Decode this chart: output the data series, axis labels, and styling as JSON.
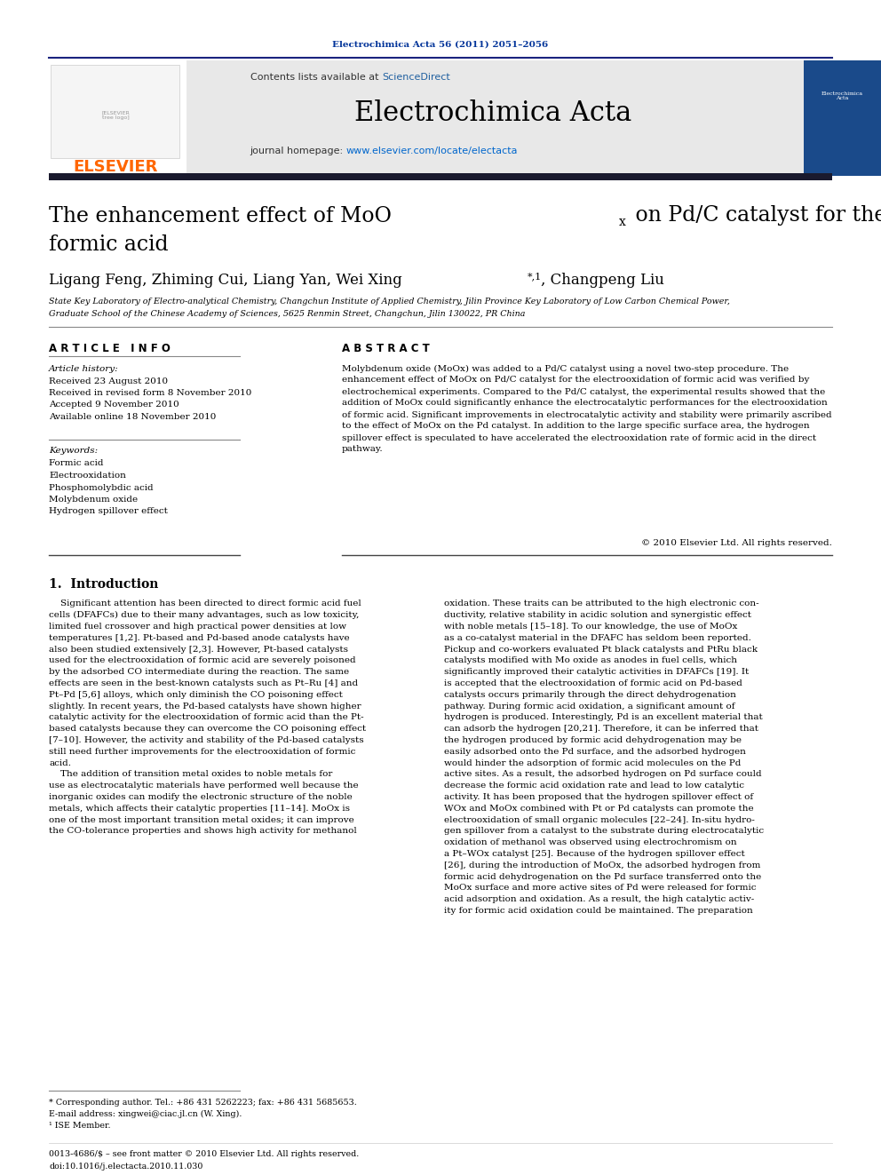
{
  "page_bg": "#ffffff",
  "top_citation": "Electrochimica Acta 56 (2011) 2051–2056",
  "top_citation_color": "#003399",
  "journal_name": "Electrochimica Acta",
  "journal_url": "www.elsevier.com/locate/electacta",
  "sciencedirect_color": "#2060a0",
  "header_bg": "#e8e8e8",
  "affiliation": "State Key Laboratory of Electro-analytical Chemistry, Changchun Institute of Applied Chemistry, Jilin Province Key Laboratory of Low Carbon Chemical Power,",
  "affiliation2": "Graduate School of the Chinese Academy of Sciences, 5625 Renmin Street, Changchun, Jilin 130022, PR China",
  "article_history_title": "Article history:",
  "article_history": [
    "Received 23 August 2010",
    "Received in revised form 8 November 2010",
    "Accepted 9 November 2010",
    "Available online 18 November 2010"
  ],
  "keywords_title": "Keywords:",
  "keywords": [
    "Formic acid",
    "Electrooxidation",
    "Phosphomolybdic acid",
    "Molybdenum oxide",
    "Hydrogen spillover effect"
  ],
  "copyright": "© 2010 Elsevier Ltd. All rights reserved.",
  "intro_title": "1.  Introduction",
  "footnote_star": "* Corresponding author. Tel.: +86 431 5262223; fax: +86 431 5685653.",
  "footnote_email": "E-mail address: xingwei@ciac.jl.cn (W. Xing).",
  "footnote_1": "¹ ISE Member.",
  "footer_text": "0013-4686/$ – see front matter © 2010 Elsevier Ltd. All rights reserved.",
  "footer_doi": "doi:10.1016/j.electacta.2010.11.030",
  "elsevier_color": "#FF6600",
  "link_color": "#0066cc"
}
